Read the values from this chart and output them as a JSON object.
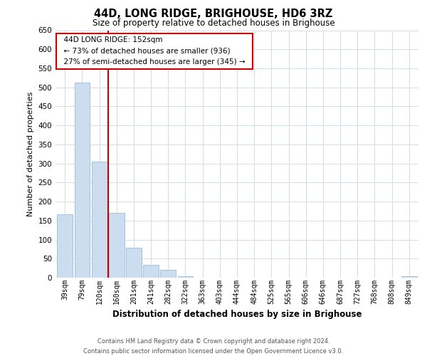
{
  "title": "44D, LONG RIDGE, BRIGHOUSE, HD6 3RZ",
  "subtitle": "Size of property relative to detached houses in Brighouse",
  "xlabel": "Distribution of detached houses by size in Brighouse",
  "ylabel": "Number of detached properties",
  "bar_labels": [
    "39sqm",
    "79sqm",
    "120sqm",
    "160sqm",
    "201sqm",
    "241sqm",
    "282sqm",
    "322sqm",
    "363sqm",
    "403sqm",
    "444sqm",
    "484sqm",
    "525sqm",
    "565sqm",
    "606sqm",
    "646sqm",
    "687sqm",
    "727sqm",
    "768sqm",
    "808sqm",
    "849sqm"
  ],
  "bar_values": [
    167,
    512,
    305,
    171,
    78,
    33,
    20,
    3,
    0,
    0,
    0,
    0,
    0,
    0,
    0,
    0,
    0,
    0,
    0,
    0,
    3
  ],
  "bar_color": "#ccddf0",
  "bar_edge_color": "#99bbdd",
  "vline_x": 2.5,
  "vline_color": "#cc0000",
  "ylim": [
    0,
    650
  ],
  "yticks": [
    0,
    50,
    100,
    150,
    200,
    250,
    300,
    350,
    400,
    450,
    500,
    550,
    600,
    650
  ],
  "annotation_title": "44D LONG RIDGE: 152sqm",
  "annotation_line1": "← 73% of detached houses are smaller (936)",
  "annotation_line2": "27% of semi-detached houses are larger (345) →",
  "annotation_box_color": "#ffffff",
  "annotation_box_edge_color": "#cc0000",
  "footer_line1": "Contains HM Land Registry data © Crown copyright and database right 2024.",
  "footer_line2": "Contains public sector information licensed under the Open Government Licence v3.0.",
  "background_color": "#ffffff",
  "grid_color": "#d0dcea"
}
